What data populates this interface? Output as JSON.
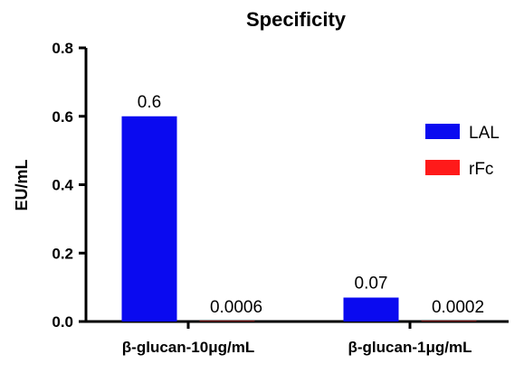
{
  "chart_data": {
    "type": "bar",
    "title": "Specificity",
    "xlabel": "",
    "ylabel": "EU/mL",
    "ylim": [
      0,
      0.8
    ],
    "yticks": [
      "0.0",
      "0.2",
      "0.4",
      "0.6",
      "0.8"
    ],
    "categories": [
      "β-glucan-10μg/mL",
      "β-glucan-1μg/mL"
    ],
    "series": [
      {
        "name": "LAL",
        "color": "#0a0af0",
        "values": [
          0.6,
          0.07
        ],
        "labels": [
          "0.6",
          "0.07"
        ]
      },
      {
        "name": "rFc",
        "color": "#ff1a1a",
        "values": [
          0.0006,
          0.0002
        ],
        "labels": [
          "0.0006",
          "0.0002"
        ]
      }
    ],
    "legend": "right",
    "grid": false
  }
}
